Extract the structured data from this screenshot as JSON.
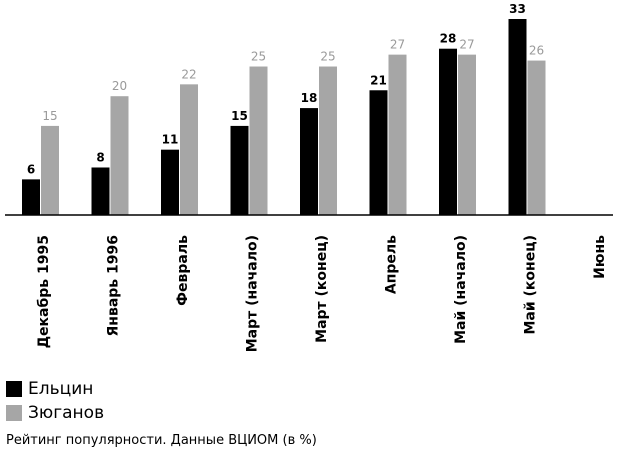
{
  "chart_data": {
    "type": "bar",
    "categories": [
      "Декабрь 1995",
      "Январь 1996",
      "Февраль",
      "Март (начало)",
      "Март (конец)",
      "Апрель",
      "Май (начало)",
      "Май (конец)",
      "Июнь"
    ],
    "series": [
      {
        "name": "Ельцин",
        "values": [
          6,
          8,
          11,
          15,
          18,
          21,
          28,
          33,
          null
        ],
        "color": "#000000"
      },
      {
        "name": "Зюганов",
        "values": [
          15,
          20,
          22,
          25,
          25,
          27,
          27,
          26,
          null
        ],
        "color": "#a6a6a6"
      }
    ],
    "ylim": [
      0,
      33
    ],
    "grid": false,
    "data_labels": true,
    "legend_position": "bottom-left"
  },
  "caption": "Рейтинг популярности. Данные ВЦИОМ (в %)"
}
